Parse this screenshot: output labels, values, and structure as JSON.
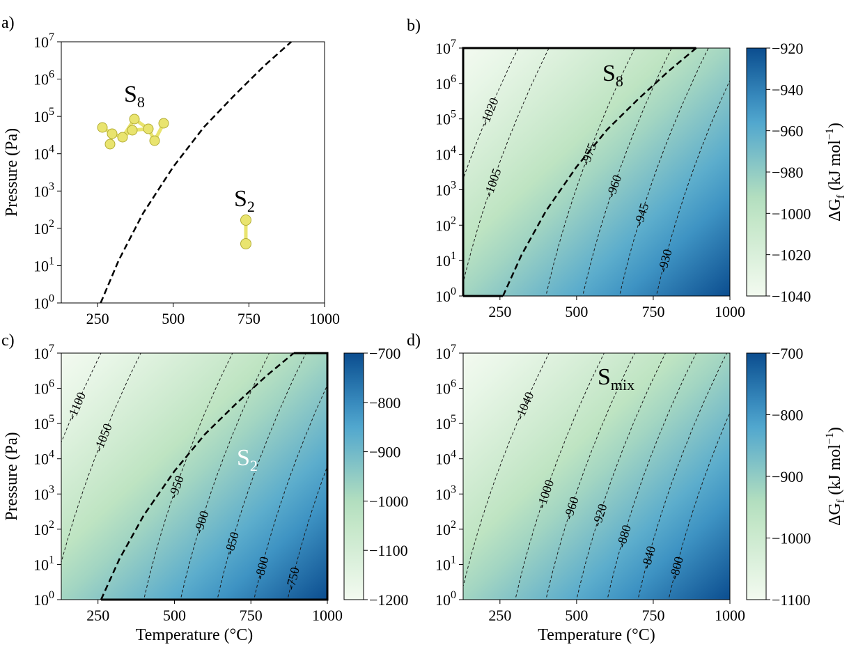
{
  "figure": {
    "colors": {
      "low": "#f3faf0",
      "mid_green": "#b9e2be",
      "mid_blue": "#4aa3cf",
      "high": "#0b4d8f",
      "molecule": "#e9e46f",
      "molecule_edge": "#b3ad36"
    }
  },
  "chart_data": [
    {
      "id": "a",
      "type": "line",
      "panel_label": "a)",
      "title": "",
      "xlabel": "",
      "ylabel": "Pressure (Pa)",
      "xlim": [
        130,
        1000
      ],
      "ylim_log10": [
        0,
        7
      ],
      "x_ticks": [
        "250",
        "500",
        "750",
        "1000"
      ],
      "y_ticks": [
        "10^0",
        "10^1",
        "10^2",
        "10^3",
        "10^4",
        "10^5",
        "10^6",
        "10^7"
      ],
      "boundary_series": {
        "name": "S8/S2 boundary",
        "style": "dashed",
        "x": [
          260,
          320,
          400,
          500,
          600,
          700,
          800,
          890
        ],
        "log10_p": [
          0,
          1.15,
          2.4,
          3.65,
          4.7,
          5.55,
          6.35,
          7
        ]
      },
      "regions": [
        {
          "label_base": "S",
          "label_sub": "8",
          "molecule": "S8"
        },
        {
          "label_base": "S",
          "label_sub": "2",
          "molecule": "S2"
        }
      ]
    },
    {
      "id": "b",
      "type": "heatmap",
      "panel_label": "b)",
      "title": "",
      "xlabel": "",
      "ylabel": "",
      "xlim": [
        130,
        1000
      ],
      "ylim_log10": [
        0,
        7
      ],
      "x_ticks": [
        "250",
        "500",
        "750",
        "1000"
      ],
      "y_ticks": [
        "10^0",
        "10^1",
        "10^2",
        "10^3",
        "10^4",
        "10^5",
        "10^6",
        "10^7"
      ],
      "colorbar": {
        "min": -1040,
        "max": -920,
        "ticks": [
          "−920",
          "−940",
          "−960",
          "−980",
          "−1000",
          "−1020",
          "−1040"
        ],
        "label_base": "ΔG",
        "label_sub": "f",
        "label_units": " (kJ mol",
        "label_exp": "−1",
        "label_close": ")"
      },
      "contours": [
        "-1020",
        "-1005",
        "-975",
        "-960",
        "-945",
        "-930"
      ],
      "region_label": {
        "base": "S",
        "sub": "8"
      },
      "boundary_series": {
        "name": "S8 stability region",
        "x": [
          130,
          130,
          890,
          800,
          700,
          600,
          500,
          400,
          320,
          260,
          130
        ],
        "log10_p": [
          0,
          7,
          7,
          6.35,
          5.55,
          4.7,
          3.65,
          2.4,
          1.15,
          0,
          0
        ]
      }
    },
    {
      "id": "c",
      "type": "heatmap",
      "panel_label": "c)",
      "title": "",
      "xlabel": "Temperature (°C)",
      "ylabel": "Pressure (Pa)",
      "xlim": [
        130,
        1000
      ],
      "ylim_log10": [
        0,
        7
      ],
      "x_ticks": [
        "250",
        "500",
        "750",
        "1000"
      ],
      "y_ticks": [
        "10^0",
        "10^1",
        "10^2",
        "10^3",
        "10^4",
        "10^5",
        "10^6",
        "10^7"
      ],
      "colorbar": {
        "min": -1200,
        "max": -700,
        "ticks": [
          "−700",
          "−800",
          "−900",
          "−1000",
          "−1100",
          "−1200"
        ]
      },
      "contours": [
        "-1100",
        "-1050",
        "-950",
        "-900",
        "-850",
        "-800",
        "-750"
      ],
      "region_label": {
        "base": "S",
        "sub": "2"
      },
      "boundary_series": {
        "name": "S2 stability region",
        "x": [
          260,
          320,
          400,
          500,
          600,
          700,
          800,
          890,
          1000,
          1000,
          260
        ],
        "log10_p": [
          0,
          1.15,
          2.4,
          3.65,
          4.7,
          5.55,
          6.35,
          7,
          7,
          0,
          0
        ]
      }
    },
    {
      "id": "d",
      "type": "heatmap",
      "panel_label": "d)",
      "title": "",
      "xlabel": "Temperature (°C)",
      "ylabel": "",
      "xlim": [
        130,
        1000
      ],
      "ylim_log10": [
        0,
        7
      ],
      "x_ticks": [
        "250",
        "500",
        "750",
        "1000"
      ],
      "y_ticks": [
        "10^0",
        "10^1",
        "10^2",
        "10^3",
        "10^4",
        "10^5",
        "10^6",
        "10^7"
      ],
      "colorbar": {
        "min": -1100,
        "max": -700,
        "ticks": [
          "−700",
          "−800",
          "−900",
          "−1000",
          "−1100"
        ],
        "label_base": "ΔG",
        "label_sub": "f",
        "label_units": " (kJ mol",
        "label_exp": "−1",
        "label_close": ")"
      },
      "contours": [
        "-1040",
        "-1000",
        "-960",
        "-920",
        "-880",
        "-840",
        "-800"
      ],
      "region_label": {
        "base": "S",
        "sub": "mix"
      }
    }
  ]
}
